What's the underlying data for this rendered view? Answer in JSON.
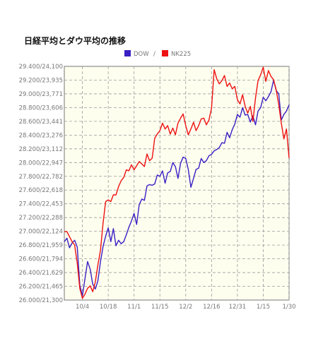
{
  "chart_data": {
    "type": "line",
    "title": "日経平均とダウ平均の推移",
    "legend_separator": "/",
    "legend_position": "top-center",
    "grid": true,
    "plot_background": "#fefeef",
    "y_tick_labels": [
      "29.400/24,100",
      "29.200/23,935",
      "29.000/23,771",
      "28.800/23,606",
      "28.600/23,441",
      "28.400/23,276",
      "28.200/23,112",
      "28.000/22,947",
      "27.800/22,782",
      "27.600/22,618",
      "27.400/22,453",
      "27.200/22,288",
      "27.000/22,124",
      "26.800/21,959",
      "26.600/21,794",
      "26.400/21,629",
      "26.200/21,465",
      "26.000/21,300"
    ],
    "ylim_dow": [
      26000,
      29400
    ],
    "ylim_nk225": [
      21300,
      24100
    ],
    "x_tick_labels": [
      "10/4",
      "10/18",
      "11/1",
      "11/15",
      "12/2",
      "12/16",
      "12/31",
      "1/15",
      "1/30"
    ],
    "x_tick_index": [
      7,
      17,
      27,
      37,
      47,
      57,
      67,
      77,
      87
    ],
    "n_points": 88,
    "series": [
      {
        "name": "DOW",
        "axis": "dow",
        "color": "#3a1fc4",
        "values": [
          26850,
          26900,
          26760,
          26830,
          26870,
          26770,
          26220,
          26060,
          26310,
          26560,
          26450,
          26230,
          26160,
          26280,
          26560,
          26780,
          26930,
          27050,
          26850,
          27040,
          26790,
          26870,
          26820,
          26850,
          26950,
          27060,
          27150,
          27260,
          27100,
          27390,
          27470,
          27450,
          27660,
          27680,
          27670,
          27690,
          27820,
          27800,
          27880,
          27700,
          27850,
          27870,
          28000,
          27940,
          27770,
          27990,
          28080,
          28060,
          27900,
          27640,
          27770,
          27900,
          27920,
          28060,
          28000,
          28030,
          28100,
          28120,
          28170,
          28190,
          28220,
          28290,
          28280,
          28440,
          28360,
          28480,
          28560,
          28700,
          28660,
          28800,
          28690,
          28700,
          28590,
          28680,
          28550,
          28750,
          28800,
          28950,
          28900,
          28960,
          29030,
          29200,
          29050,
          29000,
          28620,
          28700,
          28750,
          28840
        ]
      },
      {
        "name": "NK225",
        "axis": "nk225",
        "color": "#ee1111",
        "values": [
          22120,
          22120,
          22060,
          22000,
          21960,
          21740,
          21440,
          21320,
          21370,
          21440,
          21470,
          21400,
          21520,
          21720,
          21900,
          22220,
          22480,
          22500,
          22480,
          22560,
          22560,
          22660,
          22730,
          22770,
          22860,
          22850,
          22920,
          22860,
          22910,
          22960,
          22930,
          22900,
          23050,
          22970,
          23000,
          23240,
          23290,
          23330,
          23420,
          23350,
          23390,
          23290,
          23360,
          23280,
          23420,
          23480,
          23530,
          23390,
          23280,
          23350,
          23430,
          23330,
          23390,
          23470,
          23480,
          23400,
          23460,
          23600,
          24060,
          23950,
          23890,
          23930,
          23990,
          23860,
          23900,
          23830,
          23860,
          23700,
          23650,
          23760,
          23620,
          23540,
          23620,
          23440,
          23720,
          23930,
          24000,
          24090,
          23920,
          24050,
          23980,
          23940,
          23820,
          23640,
          23420,
          23230,
          23350,
          23000
        ]
      }
    ]
  }
}
